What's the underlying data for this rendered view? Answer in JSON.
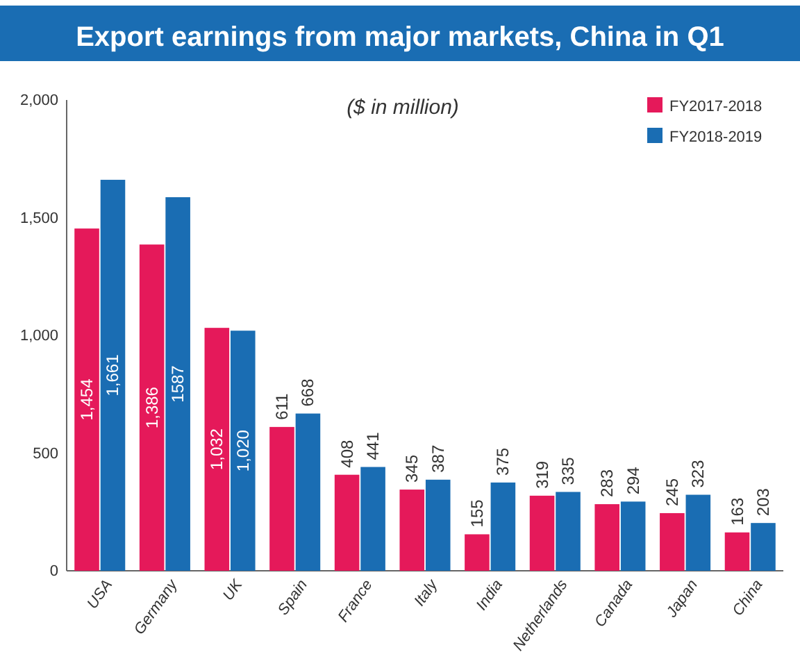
{
  "chart_data": {
    "type": "bar",
    "title": "Export earnings from major markets, China in Q1",
    "subtitle": "($ in million)",
    "categories": [
      "USA",
      "Germany",
      "UK",
      "Spain",
      "France",
      "Italy",
      "India",
      "Netherlands",
      "Canada",
      "Japan",
      "China"
    ],
    "series": [
      {
        "name": "FY2017-2018",
        "color": "#e5195a",
        "values": [
          1454,
          1386,
          1032,
          611,
          408,
          345,
          155,
          319,
          283,
          245,
          163
        ],
        "value_labels": [
          "1,454",
          "1,386",
          "1,032",
          "611",
          "408",
          "345",
          "155",
          "319",
          "283",
          "245",
          "163"
        ]
      },
      {
        "name": "FY2018-2019",
        "color": "#1a6db3",
        "values": [
          1661,
          1587,
          1020,
          668,
          441,
          387,
          375,
          335,
          294,
          323,
          203
        ],
        "value_labels": [
          "1,661",
          "1587",
          "1,020",
          "668",
          "441",
          "387",
          "375",
          "335",
          "294",
          "323",
          "203"
        ]
      }
    ],
    "ylim": [
      0,
      2000
    ],
    "yticks": [
      {
        "value": 0,
        "label": "0"
      },
      {
        "value": 500,
        "label": "500"
      },
      {
        "value": 1000,
        "label": "1,000"
      },
      {
        "value": 1500,
        "label": "1,500"
      },
      {
        "value": 2000,
        "label": "2,000"
      }
    ],
    "grid": false,
    "legend": "top right"
  }
}
